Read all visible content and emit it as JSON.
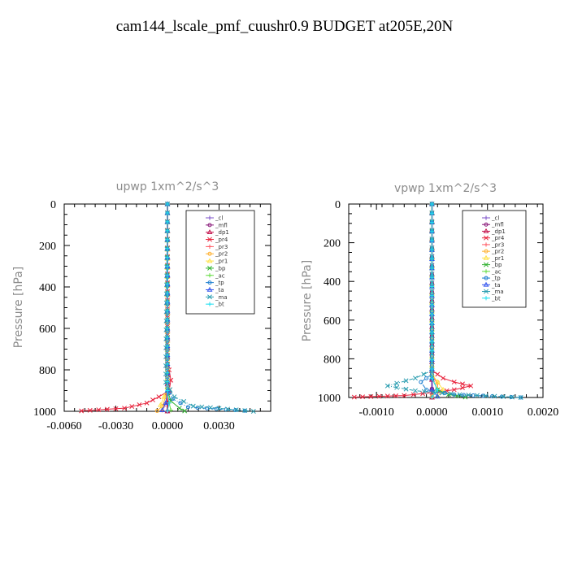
{
  "title": "cam144_lscale_pmf_cuushr0.9  BUDGET at205E,20N",
  "legend_labels": [
    "_cl",
    "_mfl",
    "_dp1",
    "_pr4",
    "_pr3",
    "_pr2",
    "_pr1",
    "_bp",
    "_ac",
    "_tp",
    "_ta",
    "_ma",
    "_bt"
  ],
  "colors": {
    "_cl": "#7b4fc9",
    "_mfl": "#8a1a7a",
    "_dp1": "#c4164e",
    "_pr4": "#e8233c",
    "_pr3": "#ff5a64",
    "_pr2": "#ffb030",
    "_pr1": "#ffe24a",
    "_bp": "#33b233",
    "_ac": "#66dd44",
    "_tp": "#1e7fd0",
    "_ta": "#3355ee",
    "_ma": "#2a9db0",
    "_bt": "#22e0f0"
  },
  "chart_data": [
    {
      "type": "line",
      "title": "upwp   1xm^2/s^3",
      "ylabel": "Pressure [hPa]",
      "xlabel": "",
      "xlim": [
        -0.006,
        0.006
      ],
      "ylim": [
        1000,
        0
      ],
      "xticks": [
        -0.006,
        -0.003,
        0.0,
        0.003
      ],
      "xtick_labels": [
        "-0.0060",
        "-0.0030",
        "0.0000",
        "0.0030"
      ],
      "yticks": [
        0,
        200,
        400,
        600,
        800,
        1000
      ],
      "ytick_labels": [
        "0",
        "200",
        "400",
        "600",
        "800",
        "1000"
      ],
      "legend_loc": "top-right",
      "series": [
        {
          "name": "_cl",
          "x": [
            0,
            0
          ],
          "y": [
            0,
            1000
          ]
        },
        {
          "name": "_mfl",
          "x": [
            0,
            0
          ],
          "y": [
            0,
            1000
          ]
        },
        {
          "name": "_dp1",
          "x": [
            0,
            0
          ],
          "y": [
            0,
            1000
          ]
        },
        {
          "name": "_pr4",
          "x": [
            0,
            0,
            0.0001,
            0.0002,
            0.0001,
            -0.0005,
            -0.0012,
            -0.0025,
            -0.005
          ],
          "y": [
            0,
            760,
            800,
            850,
            900,
            930,
            960,
            985,
            998
          ]
        },
        {
          "name": "_pr3",
          "x": [
            0,
            0,
            0.0001,
            0,
            -0.0002,
            -0.0003
          ],
          "y": [
            0,
            850,
            900,
            940,
            975,
            995
          ]
        },
        {
          "name": "_pr2",
          "x": [
            0,
            0,
            -0.0001,
            -0.0003,
            -0.0006
          ],
          "y": [
            0,
            880,
            930,
            975,
            998
          ]
        },
        {
          "name": "_pr1",
          "x": [
            0,
            0,
            -0.0002,
            -0.0004,
            -0.0003
          ],
          "y": [
            0,
            880,
            930,
            970,
            995
          ]
        },
        {
          "name": "_bp",
          "x": [
            0,
            0,
            0.0002,
            0.0007,
            0.001
          ],
          "y": [
            0,
            900,
            950,
            985,
            998
          ]
        },
        {
          "name": "_ac",
          "x": [
            0,
            0,
            0.0001,
            0.0002
          ],
          "y": [
            0,
            900,
            960,
            995
          ]
        },
        {
          "name": "_tp",
          "x": [
            0,
            0,
            0.0003,
            0.0012,
            0.0045
          ],
          "y": [
            0,
            880,
            940,
            980,
            997
          ]
        },
        {
          "name": "_ta",
          "x": [
            0,
            0,
            -0.0001,
            -0.0003
          ],
          "y": [
            0,
            900,
            960,
            995
          ]
        },
        {
          "name": "_ma",
          "x": [
            0,
            -0.0001,
            -0.0001,
            0.0004,
            0.0015,
            0.005
          ],
          "y": [
            0,
            780,
            860,
            930,
            975,
            1000
          ]
        },
        {
          "name": "_bt",
          "x": [
            0,
            0,
            0.0001,
            0
          ],
          "y": [
            0,
            900,
            960,
            998
          ]
        }
      ]
    },
    {
      "type": "line",
      "title": "vpwp   1xm^2/s^3",
      "ylabel": "Pressure [hPa]",
      "xlabel": "",
      "xlim": [
        -0.0015,
        0.002
      ],
      "ylim": [
        1000,
        0
      ],
      "xticks": [
        -0.001,
        0.0,
        0.001,
        0.002
      ],
      "xtick_labels": [
        "-0.0010",
        "0.0000",
        "0.0010",
        "0.0020"
      ],
      "yticks": [
        0,
        200,
        400,
        600,
        800,
        1000
      ],
      "ytick_labels": [
        "0",
        "200",
        "400",
        "600",
        "800",
        "1000"
      ],
      "legend_loc": "top-right",
      "series": [
        {
          "name": "_cl",
          "x": [
            0,
            0
          ],
          "y": [
            0,
            1000
          ]
        },
        {
          "name": "_mfl",
          "x": [
            0,
            0
          ],
          "y": [
            0,
            1000
          ]
        },
        {
          "name": "_dp1",
          "x": [
            0,
            0
          ],
          "y": [
            0,
            1000
          ]
        },
        {
          "name": "_pr4",
          "x": [
            0,
            0,
            0.0002,
            0.0004,
            0.0007,
            0.0004,
            0,
            -0.0005,
            -0.0014
          ],
          "y": [
            0,
            860,
            900,
            920,
            940,
            960,
            975,
            990,
            998
          ]
        },
        {
          "name": "_pr3",
          "x": [
            0,
            0,
            0.0001,
            0.0001,
            0
          ],
          "y": [
            0,
            880,
            930,
            970,
            995
          ]
        },
        {
          "name": "_pr2",
          "x": [
            0,
            0,
            0.0001,
            0.0001,
            0
          ],
          "y": [
            0,
            880,
            920,
            960,
            995
          ]
        },
        {
          "name": "_pr1",
          "x": [
            0,
            0,
            0.0001,
            0.0002,
            0.0001
          ],
          "y": [
            0,
            880,
            920,
            960,
            995
          ]
        },
        {
          "name": "_bp",
          "x": [
            0,
            0,
            0.0001,
            0.0003,
            0.0006
          ],
          "y": [
            0,
            900,
            960,
            985,
            998
          ]
        },
        {
          "name": "_ac",
          "x": [
            0,
            0,
            0.0001,
            0.0001
          ],
          "y": [
            0,
            900,
            960,
            995
          ]
        },
        {
          "name": "_tp",
          "x": [
            0,
            0,
            -0.0002,
            -0.0001,
            0.0004,
            0.0016
          ],
          "y": [
            0,
            880,
            920,
            960,
            985,
            1000
          ]
        },
        {
          "name": "_ta",
          "x": [
            0,
            0,
            0,
            0.0001
          ],
          "y": [
            0,
            900,
            960,
            995
          ]
        },
        {
          "name": "_ma",
          "x": [
            0,
            0,
            -0.0003,
            -0.0008,
            -0.0003,
            0.0005,
            0.0016
          ],
          "y": [
            0,
            860,
            900,
            940,
            965,
            985,
            1000
          ]
        },
        {
          "name": "_bt",
          "x": [
            0,
            0,
            0.0001,
            0
          ],
          "y": [
            0,
            900,
            960,
            998
          ]
        }
      ]
    }
  ]
}
